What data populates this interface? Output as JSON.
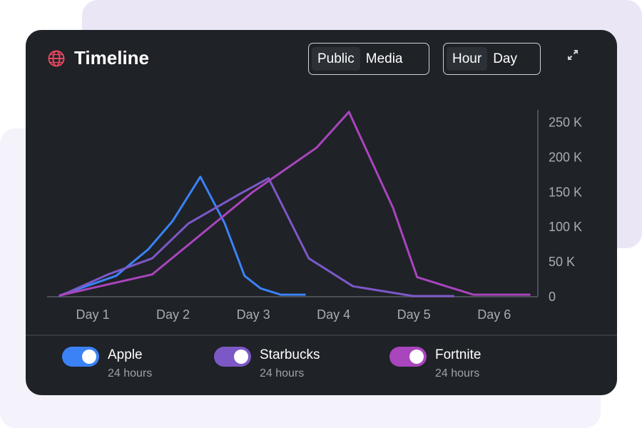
{
  "header": {
    "title": "Timeline",
    "audience_options": [
      "Public",
      "Media"
    ],
    "audience_selected": "Public",
    "range_options": [
      "Hour",
      "Day"
    ],
    "range_selected": "Hour",
    "icons": {
      "title_icon": "globe-icon",
      "expand": "expand-icon"
    }
  },
  "chart_data": {
    "type": "line",
    "title": "Timeline",
    "xlabel": "",
    "ylabel": "",
    "x_ticks": [
      "Day 1",
      "Day 2",
      "Day 3",
      "Day 4",
      "Day 5",
      "Day 6"
    ],
    "y_ticks": [
      "0",
      "50 K",
      "100 K",
      "150 K",
      "200 K",
      "250 K"
    ],
    "xlim": [
      0.8,
      6.7
    ],
    "ylim": [
      0,
      270000
    ],
    "grid": false,
    "legend_position": "bottom",
    "series": [
      {
        "name": "Apple",
        "color": "#3b82f6",
        "x": [
          0.8,
          1.5,
          1.9,
          2.2,
          2.55,
          2.85,
          3.1,
          3.3,
          3.55,
          3.85
        ],
        "y": [
          2000,
          30000,
          68000,
          108000,
          172000,
          106000,
          30000,
          12000,
          3000,
          3000
        ]
      },
      {
        "name": "Starbucks",
        "color": "#7c58c7",
        "x": [
          0.8,
          1.4,
          1.95,
          2.4,
          3.05,
          3.4,
          3.9,
          4.45,
          5.2,
          5.7
        ],
        "y": [
          1000,
          32000,
          55000,
          105000,
          148000,
          170000,
          55000,
          15000,
          1000,
          1000
        ]
      },
      {
        "name": "Fortnite",
        "color": "#a945bd",
        "x": [
          0.8,
          1.95,
          3.2,
          4.0,
          4.4,
          4.95,
          5.25,
          5.95,
          6.65
        ],
        "y": [
          2000,
          32000,
          150000,
          214000,
          265000,
          127000,
          28000,
          3000,
          3000
        ]
      }
    ]
  },
  "legend": [
    {
      "name": "Apple",
      "sub": "24 hours",
      "color": "#3b82f6",
      "on": true
    },
    {
      "name": "Starbucks",
      "sub": "24 hours",
      "color": "#7c58c7",
      "on": true
    },
    {
      "name": "Fortnite",
      "sub": "24 hours",
      "color": "#a945bd",
      "on": true
    }
  ]
}
